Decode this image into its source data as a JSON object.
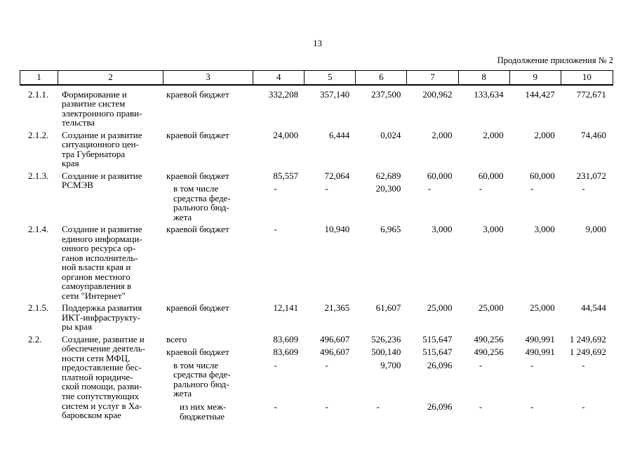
{
  "page": {
    "number": "13",
    "continuation": "Продолжение приложения № 2"
  },
  "table": {
    "header": [
      "1",
      "2",
      "3",
      "4",
      "5",
      "6",
      "7",
      "8",
      "9",
      "10"
    ],
    "rows": [
      {
        "num": "2.1.1.",
        "name": "Формирование и\nразвитие систем\nэлектронного прави-\nтельства",
        "subrows": [
          {
            "label": "краевой бюджет",
            "level": 0,
            "values": [
              "332,208",
              "357,140",
              "237,500",
              "200,962",
              "133,634",
              "144,427",
              "772,671"
            ]
          }
        ]
      },
      {
        "num": "2.1.2.",
        "name": "Создание и развитие\nситуационного цен-\nтра Губернатора\nкрая",
        "subrows": [
          {
            "label": "краевой бюджет",
            "level": 0,
            "values": [
              "24,000",
              "6,444",
              "0,024",
              "2,000",
              "2,000",
              "2,000",
              "74,460"
            ]
          }
        ]
      },
      {
        "num": "2.1.3.",
        "name": "Создание и развитие\nРСМЭВ",
        "subrows": [
          {
            "label": "краевой бюджет",
            "level": 0,
            "values": [
              "85,557",
              "72,064",
              "62,689",
              "60,000",
              "60,000",
              "60,000",
              "231,072"
            ]
          },
          {
            "label": "в том числе\nсредства феде-\nрального бюд-\nжета",
            "level": 1,
            "values": [
              "-",
              "-",
              "20,300",
              "-",
              "-",
              "-",
              "-"
            ]
          }
        ]
      },
      {
        "num": "2.1.4.",
        "name": "Создание и развитие\nединого информаци-\nонного ресурса ор-\nганов исполнитель-\nной власти края и\nорганов местного\nсамоуправления в\nсети \"Интернет\"",
        "subrows": [
          {
            "label": "краевой бюджет",
            "level": 0,
            "values": [
              "-",
              "10,940",
              "6,965",
              "3,000",
              "3,000",
              "3,000",
              "9,000"
            ]
          }
        ]
      },
      {
        "num": "2.1.5.",
        "name": "Поддержка развития\nИКТ-инфраструкту-\nры края",
        "subrows": [
          {
            "label": "краевой бюджет",
            "level": 0,
            "values": [
              "12,141",
              "21,365",
              "61,607",
              "25,000",
              "25,000",
              "25,000",
              "44,544"
            ]
          }
        ]
      },
      {
        "num": "2.2.",
        "name": "Создание, развитие и\nобеспечение деятель-\nности сети МФЦ,\nпредоставление бес-\nплатной юридиче-\nской помощи, разви-\nтие сопутствующих\nсистем и услуг в Ха-\nбаровском крае",
        "subrows": [
          {
            "label": "всего",
            "level": 0,
            "values": [
              "83,609",
              "496,607",
              "526,236",
              "515,647",
              "490,256",
              "490,991",
              "1 249,692"
            ]
          },
          {
            "label": "краевой бюджет",
            "level": 0,
            "values": [
              "83,609",
              "496,607",
              "500,140",
              "515,647",
              "490,256",
              "490,991",
              "1 249,692"
            ]
          },
          {
            "label": "в том числе\nсредства феде-\nрального бюд-\nжета",
            "level": 1,
            "values": [
              "-",
              "-",
              "9,700",
              "26,096",
              "-",
              "-",
              "-"
            ]
          },
          {
            "label": "из них меж-\nбюджетные",
            "level": 2,
            "values": [
              "-",
              "-",
              "-",
              "26,096",
              "-",
              "-",
              "-"
            ]
          }
        ]
      }
    ]
  }
}
